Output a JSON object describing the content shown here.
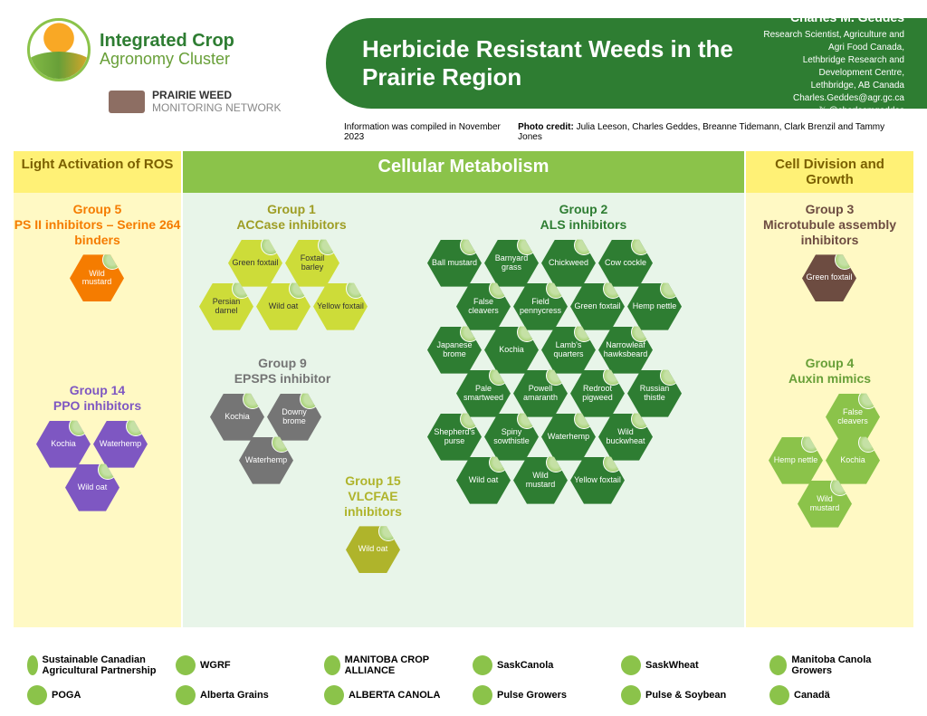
{
  "header": {
    "logo1_line1": "Integrated Crop",
    "logo1_line2": "Agronomy Cluster",
    "logo2_line1": "PRAIRIE WEED",
    "logo2_line2": "MONITORING NETWORK",
    "title": "Herbicide Resistant Weeds in the Prairie Region",
    "author_name": "Charles M. Geddes",
    "author_role": "Research Scientist, Agriculture and Agri Food Canada,",
    "author_org": "Lethbridge Research and Development Centre,",
    "author_loc": "Lethbridge, AB Canada",
    "author_email": "Charles.Geddes@agr.gc.ca",
    "author_handle": "𝕏 @charlesmgeddes",
    "compiled": "Information was compiled in November 2023",
    "credit_label": "Photo credit:",
    "credit_names": "Julia Leeson, Charles Geddes, Breanne Tidemann, Clark Brenzil and Tammy Jones"
  },
  "categories": {
    "c1": "Light Activation of ROS",
    "c2": "Cellular Metabolism",
    "c3": "Cell Division and Growth"
  },
  "groups": {
    "g5": {
      "num": "Group 5",
      "name": "PS II inhibitors – Serine 264 binders",
      "color": "#f57c00",
      "weeds": [
        "Wild mustard"
      ]
    },
    "g14": {
      "num": "Group 14",
      "name": "PPO inhibitors",
      "color": "#7e57c2",
      "weeds": [
        "Kochia",
        "Waterhemp",
        "Wild oat"
      ]
    },
    "g1": {
      "num": "Group 1",
      "name": "ACCase inhibitors",
      "color": "#9e9d24",
      "weeds": [
        "Green foxtail",
        "Foxtail barley",
        "Persian darnel",
        "Wild oat",
        "Yellow foxtail"
      ]
    },
    "g9": {
      "num": "Group 9",
      "name": "EPSPS inhibitor",
      "color": "#757575",
      "weeds": [
        "Kochia",
        "Downy brome",
        "Waterhemp"
      ]
    },
    "g15": {
      "num": "Group 15",
      "name": "VLCFAE inhibitors",
      "color": "#afb42b",
      "weeds": [
        "Wild oat"
      ]
    },
    "g2": {
      "num": "Group 2",
      "name": "ALS inhibitors",
      "color": "#2e7d32",
      "weeds": [
        "Ball mustard",
        "Barnyard grass",
        "Chickweed",
        "Cow cockle",
        "False cleavers",
        "Field pennycress",
        "Green foxtail",
        "Hemp nettle",
        "Japanese brome",
        "Kochia",
        "Lamb's quarters",
        "Narrowleaf hawksbeard",
        "Pale smartweed",
        "Powell amaranth",
        "Redroot pigweed",
        "Russian thistle",
        "Shepherd's purse",
        "Spiny sowthistle",
        "Waterhemp",
        "Wild buckwheat",
        "Wild oat",
        "Wild mustard",
        "Yellow foxtail"
      ]
    },
    "g3": {
      "num": "Group 3",
      "name": "Microtubule assembly inhibitors",
      "color": "#6d4c41",
      "weeds": [
        "Green foxtail"
      ]
    },
    "g4": {
      "num": "Group 4",
      "name": "Auxin mimics",
      "color": "#689f38",
      "weeds": [
        "False cleavers",
        "Hemp nettle",
        "Kochia",
        "Wild mustard"
      ]
    }
  },
  "footer_logos": [
    "Sustainable Canadian Agricultural Partnership",
    "WGRF",
    "MANITOBA CROP ALLIANCE",
    "SaskCanola",
    "SaskWheat",
    "Manitoba Canola Growers",
    "POGA",
    "Alberta Grains",
    "ALBERTA CANOLA",
    "Pulse Growers",
    "Pulse & Soybean",
    "Canadä"
  ],
  "colors": {
    "header_green": "#2e7d32",
    "cat_yellow": "#fff176",
    "cat_green": "#8bc34a",
    "col_yellow": "#fff9c4",
    "col_green": "#e8f5e9"
  }
}
